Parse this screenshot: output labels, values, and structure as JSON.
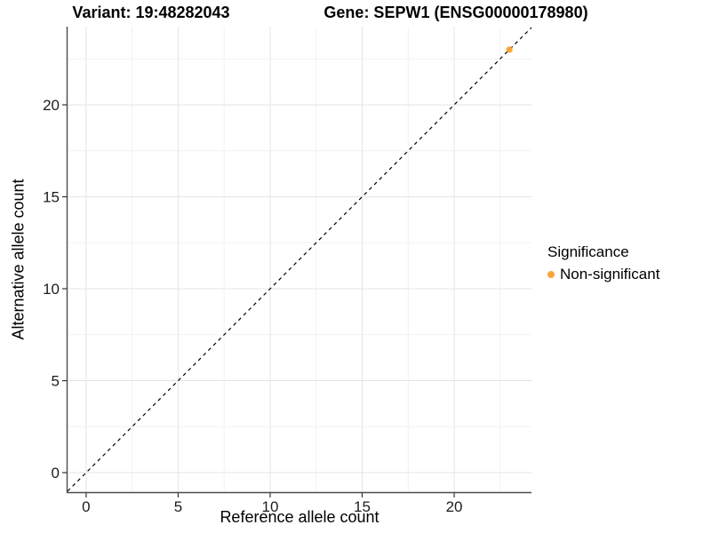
{
  "titles": {
    "left": "Variant: 19:48282043",
    "right": "Gene: SEPW1 (ENSG00000178980)"
  },
  "chart_data": {
    "type": "scatter",
    "title_left": "Variant: 19:48282043",
    "title_right": "Gene: SEPW1 (ENSG00000178980)",
    "xlabel": "Reference allele count",
    "ylabel": "Alternative allele count",
    "xlim": [
      -1.01,
      24.2
    ],
    "ylim": [
      -1.06,
      24.25
    ],
    "xticks": [
      0,
      5,
      10,
      15,
      20
    ],
    "yticks": [
      0,
      5,
      10,
      15,
      20
    ],
    "xtick_labels": [
      "0",
      "5",
      "10",
      "15",
      "20"
    ],
    "ytick_labels": [
      "0",
      "5",
      "10",
      "15",
      "20"
    ],
    "minor_xticks": [
      2.5,
      7.5,
      12.5,
      17.5,
      22.5
    ],
    "minor_yticks": [
      2.5,
      7.5,
      12.5,
      17.5,
      22.5
    ],
    "grid": true,
    "legend_position": "right",
    "reference_line": {
      "type": "identity",
      "equation": "y = x",
      "style": "dashed",
      "color": "#000000"
    },
    "series": [
      {
        "name": "Non-significant",
        "color": "#FAA43C",
        "points": [
          {
            "x": 23,
            "y": 23
          }
        ]
      }
    ]
  },
  "legend": {
    "title": "Significance",
    "items": [
      {
        "label": "Non-significant",
        "color": "#FAA43C"
      }
    ]
  },
  "colors": {
    "background": "#ffffff",
    "grid_major": "#e4e4e4",
    "grid_minor": "#f2f2f2",
    "axis_line": "#4a4a4a",
    "tick_mark": "#333333",
    "tick_label": "#1c1c1c",
    "point": "#FAA43C",
    "dashed_line": "#000000"
  }
}
